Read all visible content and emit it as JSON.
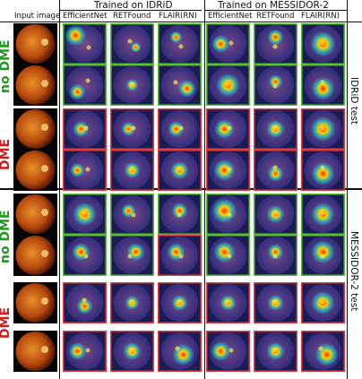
{
  "headers": {
    "input": "Input image",
    "trained_idrid": "Trained on IDRiD",
    "trained_messidor": "Trained on MESSIDOR-2",
    "columns": [
      "EfficientNet",
      "RETFound",
      "FLAIR(RN)",
      "EfficientNet",
      "RETFound",
      "FLAIR(RN)"
    ]
  },
  "test_sets": {
    "idrid": "IDRiD test",
    "messidor": "MESSIDOR-2 test"
  },
  "classes": [
    {
      "label_word": "no",
      "label_rest": " DME",
      "word_color": "#1f9a1f",
      "rest_color": "#1f9a1f"
    },
    {
      "label_word": "DME",
      "label_rest": "",
      "word_color": "#d11d1d",
      "rest_color": "#d11d1d"
    },
    {
      "label_word": "no",
      "label_rest": " DME",
      "word_color": "#1f9a1f",
      "rest_color": "#1f9a1f"
    },
    {
      "label_word": "DME",
      "label_rest": "",
      "word_color": "#d11d1d",
      "rest_color": "#d11d1d"
    }
  ],
  "colors": {
    "correct_border": "#55c02c",
    "wrong_border": "#e63a3a",
    "fundus_dark": "#5e1d08",
    "fundus_mid": "#b6480d",
    "fundus_light": "#e8902a",
    "heat_bg": "#2a2a7a"
  },
  "grid": [
    {
      "row": 1,
      "truth": "no DME",
      "borders": [
        "green",
        "green",
        "green",
        "green",
        "green",
        "green"
      ],
      "heat": [
        [
          0.25,
          0.25,
          0.8
        ],
        [
          0.6,
          0.6,
          0.2
        ],
        [
          0.4,
          0.3,
          0.3
        ],
        [
          0.3,
          0.5,
          0.6
        ],
        [
          0.5,
          0.3,
          0.5
        ],
        [
          0.5,
          0.5,
          1.0
        ]
      ]
    },
    {
      "row": 2,
      "truth": "no DME",
      "borders": [
        "green",
        "green",
        "green",
        "green",
        "green",
        "green"
      ],
      "heat": [
        [
          0.3,
          0.7,
          0.5
        ],
        [
          0.5,
          0.5,
          0.3
        ],
        [
          0.7,
          0.6,
          0.6
        ],
        [
          0.5,
          0.5,
          0.9
        ],
        [
          0.5,
          0.4,
          0.4
        ],
        [
          0.5,
          0.6,
          0.9
        ]
      ]
    },
    {
      "row": 3,
      "truth": "DME",
      "borders": [
        "red",
        "red",
        "red",
        "red",
        "red",
        "red"
      ],
      "heat": [
        [
          0.4,
          0.5,
          0.5
        ],
        [
          0.4,
          0.5,
          0.4
        ],
        [
          0.4,
          0.5,
          0.5
        ],
        [
          0.4,
          0.5,
          0.7
        ],
        [
          0.5,
          0.5,
          0.6
        ],
        [
          0.5,
          0.5,
          1.0
        ]
      ]
    },
    {
      "row": 4,
      "truth": "DME",
      "borders": [
        "red",
        "red",
        "red",
        "red",
        "red",
        "red"
      ],
      "heat": [
        [
          0.3,
          0.5,
          0.4
        ],
        [
          0.5,
          0.5,
          0.5
        ],
        [
          0.5,
          0.5,
          0.6
        ],
        [
          0.4,
          0.5,
          0.8
        ],
        [
          0.5,
          0.6,
          0.5
        ],
        [
          0.5,
          0.6,
          0.9
        ]
      ]
    },
    {
      "row": 5,
      "truth": "no DME",
      "borders": [
        "green",
        "green",
        "green",
        "green",
        "green",
        "green"
      ],
      "heat": [
        [
          0.5,
          0.5,
          0.9
        ],
        [
          0.4,
          0.4,
          0.4
        ],
        [
          0.5,
          0.4,
          0.5
        ],
        [
          0.4,
          0.4,
          1.0
        ],
        [
          0.5,
          0.5,
          0.6
        ],
        [
          0.5,
          0.5,
          0.9
        ]
      ]
    },
    {
      "row": 6,
      "truth": "no DME",
      "borders": [
        "green",
        "green",
        "red",
        "green",
        "green",
        "green"
      ],
      "heat": [
        [
          0.4,
          0.4,
          0.6
        ],
        [
          0.6,
          0.4,
          0.6
        ],
        [
          0.4,
          0.4,
          0.6
        ],
        [
          0.4,
          0.4,
          0.8
        ],
        [
          0.5,
          0.4,
          0.5
        ],
        [
          0.5,
          0.4,
          0.9
        ]
      ]
    },
    {
      "row": 7,
      "truth": "DME",
      "borders": [
        "red",
        "red",
        "red",
        "red",
        "red",
        "red"
      ],
      "heat": [
        [
          0.5,
          0.6,
          0.5
        ],
        [
          0.5,
          0.5,
          0.4
        ],
        [
          0.5,
          0.5,
          0.5
        ],
        [
          0.5,
          0.5,
          0.5
        ],
        [
          0.5,
          0.5,
          0.5
        ],
        [
          0.5,
          0.5,
          0.9
        ]
      ]
    },
    {
      "row": 8,
      "truth": "DME",
      "borders": [
        "red",
        "red",
        "red",
        "red",
        "red",
        "red"
      ],
      "heat": [
        [
          0.3,
          0.5,
          0.6
        ],
        [
          0.5,
          0.5,
          0.6
        ],
        [
          0.6,
          0.6,
          0.8
        ],
        [
          0.3,
          0.5,
          0.7
        ],
        [
          0.5,
          0.5,
          0.6
        ],
        [
          0.6,
          0.6,
          0.9
        ]
      ]
    }
  ]
}
